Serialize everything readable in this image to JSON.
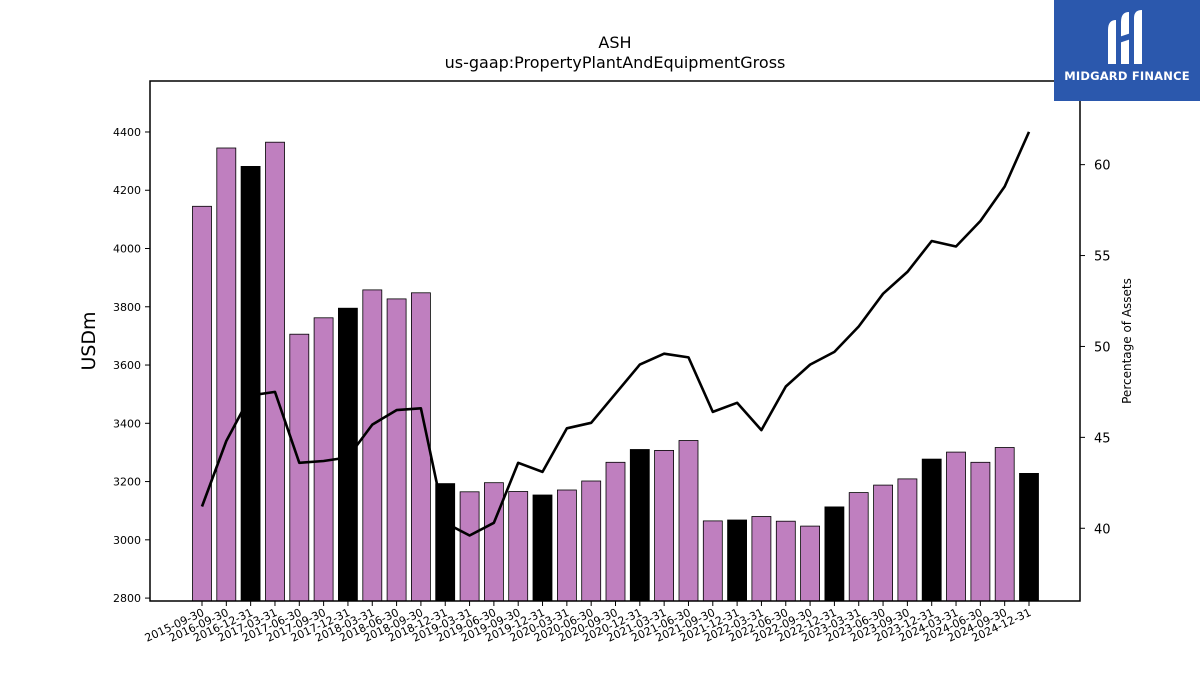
{
  "title": "ASH",
  "subtitle": "us-gaap:PropertyPlantAndEquipmentGross",
  "logo": {
    "text": "MIDGARD FINANCE"
  },
  "colors": {
    "bar_default": "#bf7fbf",
    "bar_year_end": "#000000",
    "line": "#000000"
  },
  "chart_data": {
    "type": "bar",
    "title": "ASH",
    "subtitle": "us-gaap:PropertyPlantAndEquipmentGross",
    "ylabel": "USDm",
    "y2label": "Percentage of Assets",
    "ylim": [
      2790,
      4575
    ],
    "y2lim": [
      36.0,
      64.6
    ],
    "yticks": [
      2800,
      3000,
      3200,
      3400,
      3600,
      3800,
      4000,
      4200,
      4400
    ],
    "y2ticks": [
      40,
      45,
      50,
      55,
      60
    ],
    "categories": [
      "2015-09-30",
      "2016-09-30",
      "2016-12-31",
      "2017-03-31",
      "2017-06-30",
      "2017-09-30",
      "2017-12-31",
      "2018-03-31",
      "2018-06-30",
      "2018-09-30",
      "2018-12-31",
      "2019-03-31",
      "2019-06-30",
      "2019-09-30",
      "2019-12-31",
      "2020-03-31",
      "2020-06-30",
      "2020-09-30",
      "2020-12-31",
      "2021-03-31",
      "2021-06-30",
      "2021-09-30",
      "2021-12-31",
      "2022-03-31",
      "2022-06-30",
      "2022-09-30",
      "2022-12-31",
      "2023-03-31",
      "2023-06-30",
      "2023-09-30",
      "2023-12-31",
      "2024-03-31",
      "2024-06-30",
      "2024-09-30",
      "2024-12-31"
    ],
    "series": [
      {
        "type": "bar",
        "values": [
          4145,
          4345,
          4282,
          4365,
          3706,
          3762,
          3795,
          3858,
          3827,
          3848,
          3193,
          3165,
          3196,
          3166,
          3154,
          3171,
          3202,
          3266,
          3310,
          3307,
          3341,
          3065,
          3068,
          3080,
          3064,
          3047,
          3113,
          3162,
          3188,
          3209,
          3277,
          3301,
          3266,
          3317,
          3228
        ],
        "year_end": [
          false,
          false,
          true,
          false,
          false,
          false,
          true,
          false,
          false,
          false,
          true,
          false,
          false,
          false,
          true,
          false,
          false,
          false,
          true,
          false,
          false,
          false,
          true,
          false,
          false,
          false,
          true,
          false,
          false,
          false,
          true,
          false,
          false,
          false,
          true
        ]
      },
      {
        "type": "line",
        "axis": "right",
        "values": [
          41.2,
          44.8,
          47.3,
          47.5,
          43.6,
          43.7,
          43.9,
          45.7,
          46.5,
          46.6,
          40.3,
          39.6,
          40.3,
          43.6,
          43.1,
          45.5,
          45.8,
          47.4,
          49.0,
          49.6,
          49.4,
          46.4,
          46.9,
          45.4,
          47.8,
          49.0,
          49.7,
          51.1,
          52.9,
          54.1,
          55.8,
          55.5,
          56.9,
          58.8,
          61.8
        ]
      }
    ],
    "grid": false,
    "legend": "none"
  }
}
